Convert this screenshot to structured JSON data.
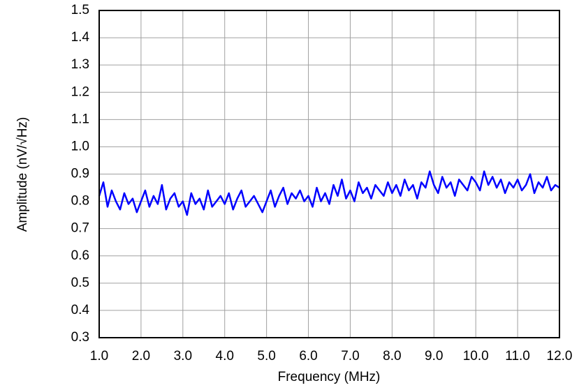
{
  "chart_data": {
    "type": "line",
    "xlabel": "Frequency (MHz)",
    "ylabel": "Amplitude (nV/√Hz)",
    "color": "#0000ff",
    "grid": true,
    "xlim": [
      1,
      12
    ],
    "ylim": [
      0.3,
      1.5
    ],
    "xticks": [
      {
        "value": 1,
        "label": "1.0"
      },
      {
        "value": 2,
        "label": "2.0"
      },
      {
        "value": 3,
        "label": "3.0"
      },
      {
        "value": 4,
        "label": "4.0"
      },
      {
        "value": 5,
        "label": "5.0"
      },
      {
        "value": 6,
        "label": "6.0"
      },
      {
        "value": 7,
        "label": "7.0"
      },
      {
        "value": 8,
        "label": "8.0"
      },
      {
        "value": 9,
        "label": "9.0"
      },
      {
        "value": 10,
        "label": "10.0"
      },
      {
        "value": 11,
        "label": "11.0"
      },
      {
        "value": 12,
        "label": "12.0"
      }
    ],
    "yticks": [
      0.3,
      0.4,
      0.5,
      0.6,
      0.7,
      0.8,
      0.9,
      {
        "value": 1,
        "label": "1.0"
      },
      1.1,
      1.2,
      1.3,
      1.4,
      1.5
    ],
    "x": [
      1,
      1.1,
      1.2,
      1.3,
      1.4,
      1.5,
      1.6,
      1.7,
      1.8,
      1.9,
      2,
      2.1,
      2.2,
      2.3,
      2.4,
      2.5,
      2.6,
      2.7,
      2.8,
      2.9,
      3,
      3.1,
      3.2,
      3.3,
      3.4,
      3.5,
      3.6,
      3.7,
      3.8,
      3.9,
      4,
      4.1,
      4.2,
      4.3,
      4.4,
      4.5,
      4.6,
      4.7,
      4.8,
      4.9,
      5,
      5.1,
      5.2,
      5.3,
      5.4,
      5.5,
      5.6,
      5.7,
      5.8,
      5.9,
      6,
      6.1,
      6.2,
      6.3,
      6.4,
      6.5,
      6.6,
      6.7,
      6.8,
      6.9,
      7,
      7.1,
      7.2,
      7.3,
      7.4,
      7.5,
      7.6,
      7.7,
      7.8,
      7.9,
      8,
      8.1,
      8.2,
      8.3,
      8.4,
      8.5,
      8.6,
      8.7,
      8.8,
      8.9,
      9,
      9.1,
      9.2,
      9.3,
      9.4,
      9.5,
      9.6,
      9.7,
      9.8,
      9.9,
      10,
      10.1,
      10.2,
      10.3,
      10.4,
      10.5,
      10.6,
      10.7,
      10.8,
      10.9,
      11,
      11.1,
      11.2,
      11.3,
      11.4,
      11.5,
      11.6,
      11.7,
      11.8,
      11.9,
      12
    ],
    "values": [
      0.82,
      0.87,
      0.78,
      0.84,
      0.8,
      0.77,
      0.83,
      0.79,
      0.81,
      0.76,
      0.8,
      0.84,
      0.78,
      0.82,
      0.79,
      0.86,
      0.77,
      0.81,
      0.83,
      0.78,
      0.8,
      0.75,
      0.83,
      0.79,
      0.81,
      0.77,
      0.84,
      0.78,
      0.8,
      0.82,
      0.79,
      0.83,
      0.77,
      0.81,
      0.84,
      0.78,
      0.8,
      0.82,
      0.79,
      0.76,
      0.8,
      0.84,
      0.78,
      0.82,
      0.85,
      0.79,
      0.83,
      0.81,
      0.84,
      0.8,
      0.82,
      0.78,
      0.85,
      0.8,
      0.83,
      0.79,
      0.86,
      0.82,
      0.88,
      0.81,
      0.84,
      0.8,
      0.87,
      0.83,
      0.85,
      0.81,
      0.86,
      0.84,
      0.82,
      0.87,
      0.83,
      0.86,
      0.82,
      0.88,
      0.84,
      0.86,
      0.81,
      0.87,
      0.85,
      0.91,
      0.86,
      0.83,
      0.89,
      0.85,
      0.87,
      0.82,
      0.88,
      0.86,
      0.84,
      0.89,
      0.87,
      0.84,
      0.91,
      0.86,
      0.89,
      0.85,
      0.88,
      0.83,
      0.87,
      0.85,
      0.88,
      0.84,
      0.86,
      0.9,
      0.83,
      0.87,
      0.85,
      0.89,
      0.84,
      0.86,
      0.85
    ]
  }
}
